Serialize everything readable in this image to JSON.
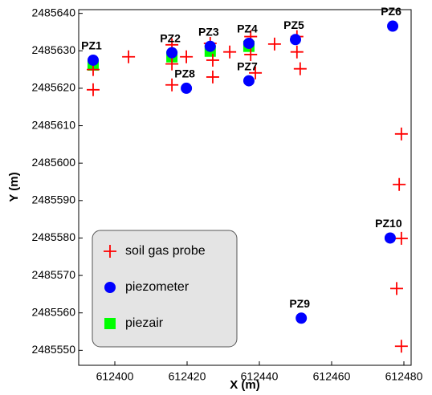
{
  "chart_data": {
    "type": "scatter",
    "xlabel": "X (m)",
    "ylabel": "Y (m)",
    "xlim": [
      612390,
      612482
    ],
    "ylim": [
      2485546,
      2485641
    ],
    "xticks": [
      612400,
      612420,
      612440,
      612460,
      612480
    ],
    "yticks": [
      2485550,
      2485560,
      2485570,
      2485580,
      2485590,
      2485600,
      2485610,
      2485620,
      2485630,
      2485640
    ],
    "legend": "lower left",
    "series": [
      {
        "name": "soil gas probe",
        "color": "#ff0000",
        "marker": "plus",
        "x": [
          612394,
          612394,
          612403.8,
          612415.8,
          612415.8,
          612415.8,
          612419.8,
          612426.4,
          612427.1,
          612427.1,
          612431.8,
          612437.6,
          612437.6,
          612438.9,
          612444.2,
          612450.4,
          612450.4,
          612451.3,
          612479.3,
          612478.7,
          612479.3,
          612478,
          612479.3
        ],
        "y": [
          2485625,
          2485619.6,
          2485628.4,
          2485631.6,
          2485626.5,
          2485620.9,
          2485628.4,
          2485632,
          2485627.5,
          2485623,
          2485629.7,
          2485633.8,
          2485629,
          2485624.1,
          2485631.8,
          2485633.8,
          2485629.7,
          2485625.2,
          2485607.8,
          2485594.3,
          2485579.9,
          2485566.5,
          2485551.1
        ]
      },
      {
        "name": "piezometer",
        "color": "#0000ff",
        "marker": "circle",
        "x": [
          612394,
          612415.8,
          612426.4,
          612437.1,
          612450,
          612476.9,
          612437.1,
          612419.8,
          612451.6,
          612476.2
        ],
        "y": [
          2485627.5,
          2485629.5,
          2485631.2,
          2485632,
          2485633,
          2485636.6,
          2485622,
          2485620,
          2485558.6,
          2485580
        ],
        "labels": [
          "PZ1",
          "PZ2",
          "PZ3",
          "PZ4",
          "PZ5",
          "PZ6",
          "PZ7",
          "PZ8",
          "PZ9",
          "PZ10"
        ]
      },
      {
        "name": "piezair",
        "color": "#00ff00",
        "marker": "square",
        "x": [
          612394,
          612415.8,
          612426.4,
          612437.1
        ],
        "y": [
          2485626.2,
          2485628.4,
          2485629.9,
          2485631.2
        ]
      }
    ]
  }
}
